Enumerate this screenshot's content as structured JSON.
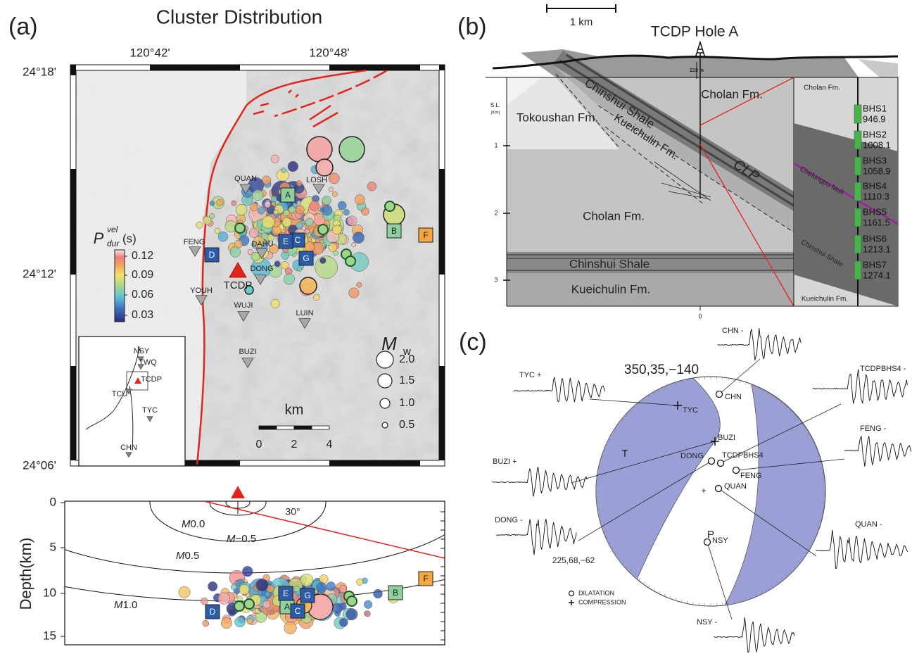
{
  "panel_a": {
    "label": "(a)",
    "title": "Cluster Distribution",
    "lon_ticks": [
      "120°42'",
      "120°48'"
    ],
    "lat_ticks": [
      "24°18'",
      "24°12'",
      "24°06'"
    ],
    "colorbar": {
      "symbol": "P",
      "superscript": "vel",
      "subscript": "dur",
      "unit": "(s)",
      "ticks": [
        "0.12",
        "0.09",
        "0.06",
        "0.03"
      ]
    },
    "stations": [
      "QUAN",
      "LOSH",
      "FENG",
      "DAHU",
      "DONG",
      "TCDP",
      "YOUH",
      "WUJI",
      "LUIN",
      "BUZI"
    ],
    "clusters": [
      "A",
      "B",
      "C",
      "D",
      "E",
      "F",
      "G"
    ],
    "magnitude_legend": {
      "symbol": "M",
      "subscript": "w",
      "ticks": [
        "2.0",
        "1.5",
        "1.0",
        "0.5"
      ]
    },
    "scale_bar": {
      "label": "km",
      "ticks": [
        "0",
        "2",
        "4"
      ]
    },
    "inset_stations": [
      "NSY",
      "TWQ",
      "TCDP",
      "TCU",
      "TYC",
      "CHN"
    ]
  },
  "depth_section": {
    "axis_label": "Depth(km)",
    "ticks": [
      "0",
      "5",
      "10",
      "15"
    ],
    "angle": "30°",
    "contours": [
      {
        "symbol": "M",
        "value": "0.0"
      },
      {
        "symbol": "M",
        "value": "−0.5"
      },
      {
        "symbol": "M",
        "value": "0.5"
      },
      {
        "symbol": "M",
        "value": "1.0"
      }
    ],
    "clusters": [
      "A",
      "B",
      "C",
      "D",
      "E",
      "F",
      "G"
    ]
  },
  "panel_b": {
    "label": "(b)",
    "scale": "1 km",
    "title": "TCDP Hole A",
    "depth_marker": "219 m",
    "axis": {
      "datum": "S.L.",
      "unit": "(Km)",
      "ticks": [
        "1",
        "2",
        "3"
      ],
      "origin": "0"
    },
    "formations": [
      "Cholan Fm.",
      "Chinshui Shale",
      "Tokoushan Fm.",
      "Kueichulin Fm.",
      "CLP",
      "Cholan Fm.",
      "Chinshui Shale",
      "Kueichulin Fm."
    ],
    "column": {
      "formations": [
        "Cholan Fm.",
        "Chelungpu fault",
        "Chinshui Shale",
        "Kueichulin Fm."
      ],
      "samples": [
        {
          "name": "BHS1",
          "depth": "946.9"
        },
        {
          "name": "BHS2",
          "depth": "1008.1"
        },
        {
          "name": "BHS3",
          "depth": "1058.9"
        },
        {
          "name": "BHS4",
          "depth": "1110.3"
        },
        {
          "name": "BHS5",
          "depth": "1161.5"
        },
        {
          "name": "BHS6",
          "depth": "1213.1"
        },
        {
          "name": "BHS7",
          "depth": "1274.1"
        }
      ]
    }
  },
  "panel_c": {
    "label": "(c)",
    "mechanism": "350,35,−140",
    "auxiliary": "225,68,−62",
    "quadrants": [
      "T",
      "P"
    ],
    "stations": [
      "TYC",
      "CHN",
      "BUZI",
      "DONG",
      "TCDPBHS4",
      "FENG",
      "QUAN",
      "NSY"
    ],
    "waveforms": [
      "TYC +",
      "CHN -",
      "TCDPBHS4 -",
      "FENG -",
      "BUZI +",
      "DONG -",
      "QUAN -",
      "NSY -"
    ],
    "legend": [
      "DILATATION",
      "COMPRESSION"
    ]
  }
}
